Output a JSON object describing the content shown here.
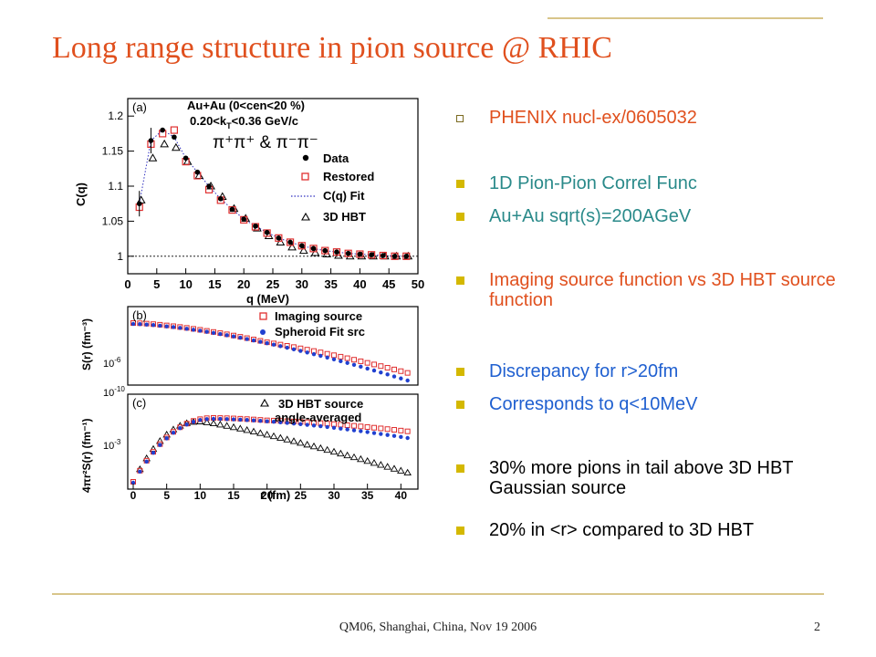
{
  "slide": {
    "title": "Long range structure in pion source @ RHIC",
    "footer": "QM06, Shanghai, China, Nov 19 2006",
    "page_number": "2",
    "colors": {
      "title": "#e0501e",
      "rule": "#d8c58a",
      "bullet_marker": "#d4b800"
    }
  },
  "bullets": [
    {
      "text": "PHENIX nucl-ex/0605032",
      "color": "#e0501e",
      "marker": "hollow-square"
    },
    {
      "text": "1D Pion-Pion Correl Func",
      "color": "#2a8a8a",
      "marker": "filled-square"
    },
    {
      "text": "Au+Au sqrt(s)=200AGeV",
      "color": "#2a8a8a",
      "marker": "filled-square"
    },
    {
      "text": "Imaging source function vs 3D HBT source function",
      "color": "#e0501e",
      "marker": "filled-square"
    },
    {
      "text": "Discrepancy for r>20fm",
      "color": "#2060d0",
      "marker": "filled-square"
    },
    {
      "text": "Corresponds to q<10MeV",
      "color": "#2060d0",
      "marker": "filled-square"
    },
    {
      "text": "30% more pions in tail above 3D HBT Gaussian source",
      "color": "#000000",
      "marker": "filled-square"
    },
    {
      "text": "20% in <r> compared to 3D HBT",
      "color": "#000000",
      "marker": "filled-square"
    }
  ],
  "figure": {
    "panel_a": {
      "tag": "(a)",
      "label_line1": "Au+Au (0<cen<20 %)",
      "label_line2": "0.20<k",
      "label_line2_sub": "T",
      "label_line2_rest": "<0.36 GeV/c",
      "label_line3": "π⁺π⁺ & π⁻π⁻",
      "legend": [
        "Data",
        "Restored",
        "C(q) Fit",
        "3D HBT"
      ],
      "xlabel": "q (MeV)",
      "ylabel": "C(q)",
      "xticks": [
        "0",
        "5",
        "10",
        "15",
        "20",
        "25",
        "30",
        "35",
        "40",
        "45",
        "50"
      ],
      "yticks": [
        "1",
        "1.05",
        "1.1",
        "1.15",
        "1.2"
      ]
    },
    "panel_b": {
      "tag": "(b)",
      "legend": [
        "Imaging source",
        "Spheroid Fit src"
      ],
      "ylabel": "S(r) (fm⁻³)",
      "yticks": [
        "10",
        "10"
      ],
      "ytick_exps": [
        "-6",
        "-10"
      ]
    },
    "panel_c": {
      "tag": "(c)",
      "legend_line1": "3D HBT source",
      "legend_line2": "angle-averaged",
      "ylabel": "4πr²S(r) (fm⁻¹)",
      "yticks": [
        "10"
      ],
      "ytick_exps": [
        "-3"
      ],
      "xlabel": "r (fm)",
      "xticks": [
        "0",
        "5",
        "10",
        "15",
        "20",
        "25",
        "30",
        "35",
        "40"
      ]
    }
  },
  "chart_data": [
    {
      "type": "scatter",
      "title": "",
      "xlabel": "q (MeV)",
      "ylabel": "C(q)",
      "xlim": [
        0,
        50
      ],
      "ylim": [
        0.975,
        1.225
      ],
      "x": [
        2,
        4,
        6,
        8,
        10,
        12,
        14,
        16,
        18,
        20,
        22,
        24,
        26,
        28,
        30,
        32,
        34,
        36,
        38,
        40,
        42,
        44,
        46,
        48
      ],
      "series": [
        {
          "name": "Data",
          "marker": "filled-circle",
          "color": "#000000",
          "values": [
            1.075,
            1.165,
            1.18,
            1.17,
            1.14,
            1.12,
            1.1,
            1.082,
            1.067,
            1.053,
            1.043,
            1.034,
            1.026,
            1.02,
            1.015,
            1.011,
            1.008,
            1.006,
            1.004,
            1.003,
            1.002,
            1.001,
            1.0,
            1.0
          ]
        },
        {
          "name": "Restored",
          "marker": "open-square",
          "color": "#e03030",
          "values": [
            1.07,
            1.16,
            1.175,
            1.18,
            1.135,
            1.115,
            1.095,
            1.08,
            1.066,
            1.052,
            1.042,
            1.033,
            1.026,
            1.02,
            1.015,
            1.011,
            1.008,
            1.006,
            1.004,
            1.003,
            1.002,
            1.001,
            1.0,
            1.0
          ]
        },
        {
          "name": "3D HBT",
          "marker": "open-triangle",
          "color": "#000000",
          "values": [
            1.08,
            1.14,
            1.16,
            1.155,
            1.135,
            1.115,
            1.1,
            1.085,
            1.068,
            1.054,
            1.04,
            1.029,
            1.02,
            1.013,
            1.008,
            1.005,
            1.003,
            1.001,
            1.0,
            1.0,
            1.0,
            1.0,
            1.0,
            1.0
          ]
        }
      ],
      "fit_series": {
        "name": "C(q) Fit",
        "style": "dotted",
        "color": "#3030c0"
      }
    },
    {
      "type": "scatter",
      "title": "",
      "xlabel": "r (fm)",
      "ylabel": "S(r) (fm⁻³)",
      "xlim": [
        0,
        42
      ],
      "yscale": "log",
      "x": [
        0,
        1,
        2,
        3,
        4,
        5,
        6,
        7,
        8,
        9,
        10,
        11,
        12,
        13,
        14,
        15,
        16,
        17,
        18,
        19,
        20,
        21,
        22,
        23,
        24,
        25,
        26,
        27,
        28,
        29,
        30,
        31,
        32,
        33,
        34,
        35,
        36,
        37,
        38,
        39,
        40,
        41
      ],
      "series": [
        {
          "name": "Imaging source",
          "marker": "open-square",
          "color": "#e03030",
          "trend": "decreasing, higher tail beyond r≈20fm"
        },
        {
          "name": "Spheroid Fit src",
          "marker": "filled-circle",
          "color": "#2040d0",
          "trend": "decreasing"
        }
      ]
    },
    {
      "type": "scatter",
      "title": "",
      "xlabel": "r (fm)",
      "ylabel": "4πr²S(r) (fm⁻¹)",
      "xlim": [
        0,
        42
      ],
      "yscale": "log",
      "series": [
        {
          "name": "Imaging source",
          "marker": "open-square",
          "color": "#e03030",
          "trend": "rise to peak near r≈12fm, slow fall"
        },
        {
          "name": "Spheroid Fit src",
          "marker": "filled-circle",
          "color": "#2040d0",
          "trend": "rise to peak near r≈12fm, slow fall"
        },
        {
          "name": "3D HBT source angle-averaged",
          "marker": "open-triangle",
          "color": "#000000",
          "trend": "rise to peak near r≈10fm, faster fall"
        }
      ]
    }
  ]
}
